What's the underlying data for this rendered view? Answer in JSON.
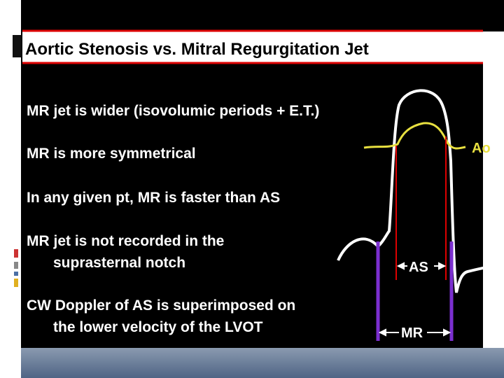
{
  "header": {
    "title": "Aortic Stenosis vs. Mitral Regurgitation Jet"
  },
  "bullets": [
    {
      "lines": [
        "MR jet is wider (isovolumic periods + E.T.)"
      ]
    },
    {
      "lines": [
        "MR is more symmetrical"
      ]
    },
    {
      "lines": [
        "In any given pt, MR is faster than AS"
      ]
    },
    {
      "lines": [
        "MR jet is not recorded in the",
        "suprasternal notch"
      ]
    },
    {
      "lines": [
        "CW Doppler of AS is superimposed on",
        "the lower velocity of the LVOT"
      ]
    }
  ],
  "diagram": {
    "ao_label": "Ao",
    "as_label": "AS",
    "mr_label": "MR"
  }
}
